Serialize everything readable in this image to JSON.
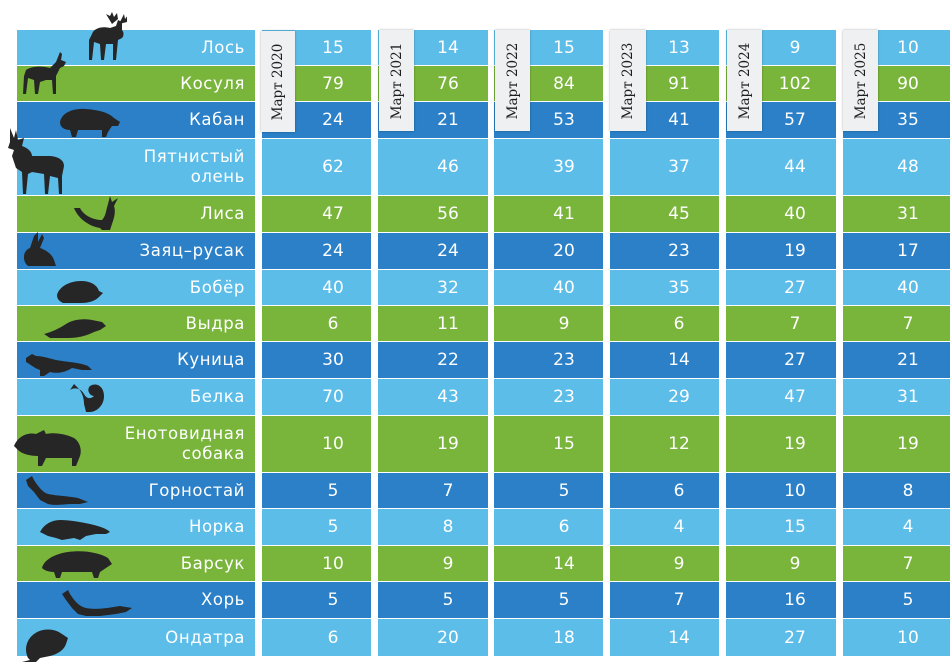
{
  "colors": {
    "light": "#5dbde9",
    "green": "#7ab53b",
    "dark": "#2b80c8",
    "header_bg": "#eef0f1",
    "silhouette": "#262626"
  },
  "chart_data": {
    "type": "table",
    "columns": [
      "Март 2020",
      "Март 2021",
      "Март 2022",
      "Март 2023",
      "Март 2024",
      "Март 2025"
    ],
    "rows": [
      {
        "name": "Лось",
        "icon": "moose-icon",
        "values": [
          15,
          14,
          15,
          13,
          9,
          10
        ]
      },
      {
        "name": "Косуля",
        "icon": "roe-deer-icon",
        "values": [
          79,
          76,
          84,
          91,
          102,
          90
        ]
      },
      {
        "name": "Кабан",
        "icon": "boar-icon",
        "values": [
          24,
          21,
          53,
          41,
          57,
          35
        ]
      },
      {
        "name": "Пятнистый\nолень",
        "icon": "spotted-deer-icon",
        "values": [
          62,
          46,
          39,
          37,
          44,
          48
        ]
      },
      {
        "name": "Лиса",
        "icon": "fox-icon",
        "values": [
          47,
          56,
          41,
          45,
          40,
          31
        ]
      },
      {
        "name": "Заяц–русак",
        "icon": "hare-icon",
        "values": [
          24,
          24,
          20,
          23,
          19,
          17
        ]
      },
      {
        "name": "Бобёр",
        "icon": "beaver-icon",
        "values": [
          40,
          32,
          40,
          35,
          27,
          40
        ]
      },
      {
        "name": "Выдра",
        "icon": "otter-icon",
        "values": [
          6,
          11,
          9,
          6,
          7,
          7
        ]
      },
      {
        "name": "Куница",
        "icon": "marten-icon",
        "values": [
          30,
          22,
          23,
          14,
          27,
          21
        ]
      },
      {
        "name": "Белка",
        "icon": "squirrel-icon",
        "values": [
          70,
          43,
          23,
          29,
          47,
          31
        ]
      },
      {
        "name": "Енотовидная\nсобака",
        "icon": "raccoon-dog-icon",
        "values": [
          10,
          19,
          15,
          12,
          19,
          19
        ]
      },
      {
        "name": "Горностай",
        "icon": "stoat-icon",
        "values": [
          5,
          7,
          5,
          6,
          10,
          8
        ]
      },
      {
        "name": "Норка",
        "icon": "mink-icon",
        "values": [
          5,
          8,
          6,
          4,
          15,
          4
        ]
      },
      {
        "name": "Барсук",
        "icon": "badger-icon",
        "values": [
          10,
          9,
          14,
          9,
          9,
          7
        ]
      },
      {
        "name": "Хорь",
        "icon": "polecat-icon",
        "values": [
          5,
          5,
          5,
          7,
          16,
          5
        ]
      },
      {
        "name": "Ондатра",
        "icon": "muskrat-icon",
        "values": [
          6,
          20,
          18,
          14,
          27,
          10
        ]
      }
    ]
  }
}
